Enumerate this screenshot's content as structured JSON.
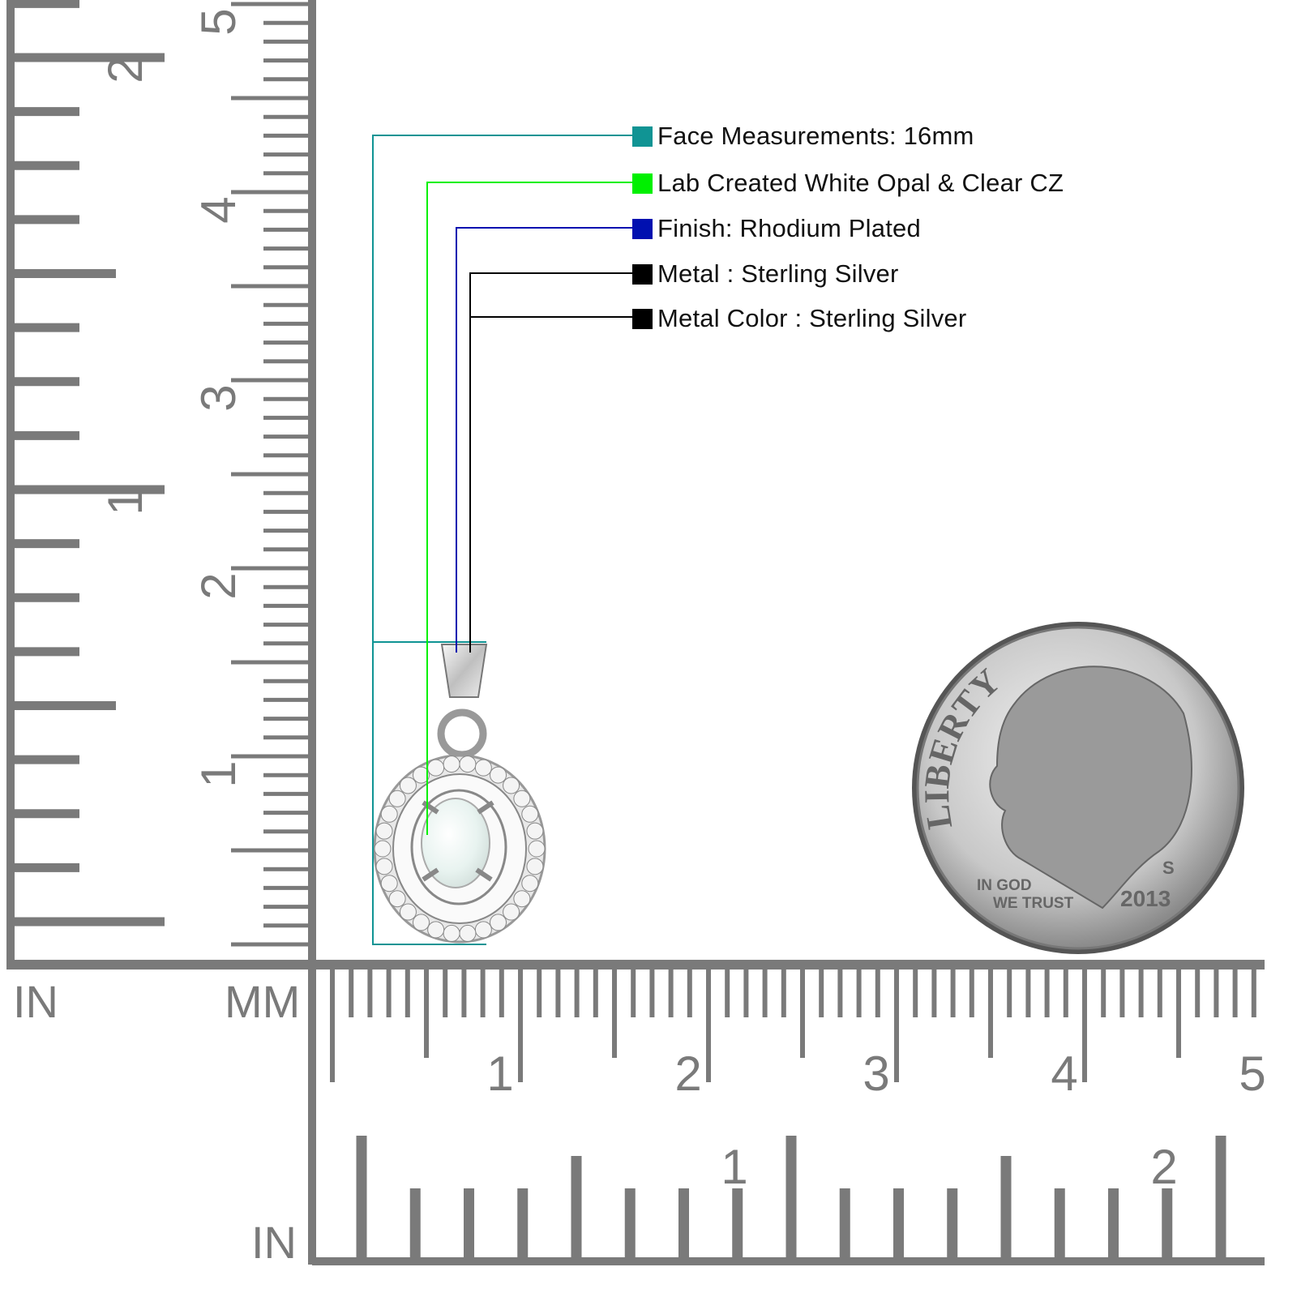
{
  "legend": [
    {
      "label": "Face Measurements: 16mm",
      "color": "#109494"
    },
    {
      "label": "Lab Created White Opal & Clear CZ",
      "color": "#00f000"
    },
    {
      "label": "Finish: Rhodium Plated",
      "color": "#0010b0"
    },
    {
      "label": "Metal : Sterling Silver",
      "color": "#000000"
    },
    {
      "label": "Metal Color : Sterling Silver",
      "color": "#000000"
    }
  ],
  "rulers": {
    "left_unit_in": "IN",
    "left_unit_mm": "MM",
    "bottom_unit_in": "IN",
    "vertical_inch_labels": [
      "1",
      "2"
    ],
    "vertical_cm_labels": [
      "1",
      "2",
      "3",
      "4",
      "5"
    ],
    "horizontal_cm_labels": [
      "1",
      "2",
      "3",
      "4",
      "5"
    ],
    "horizontal_inch_labels": [
      "1",
      "2"
    ],
    "color": "#7a7a7a"
  },
  "coin": {
    "legend_text": "LIBERTY",
    "motto_line1": "IN GOD",
    "motto_line2": "WE TRUST",
    "year": "2013",
    "mint_mark": "S"
  }
}
